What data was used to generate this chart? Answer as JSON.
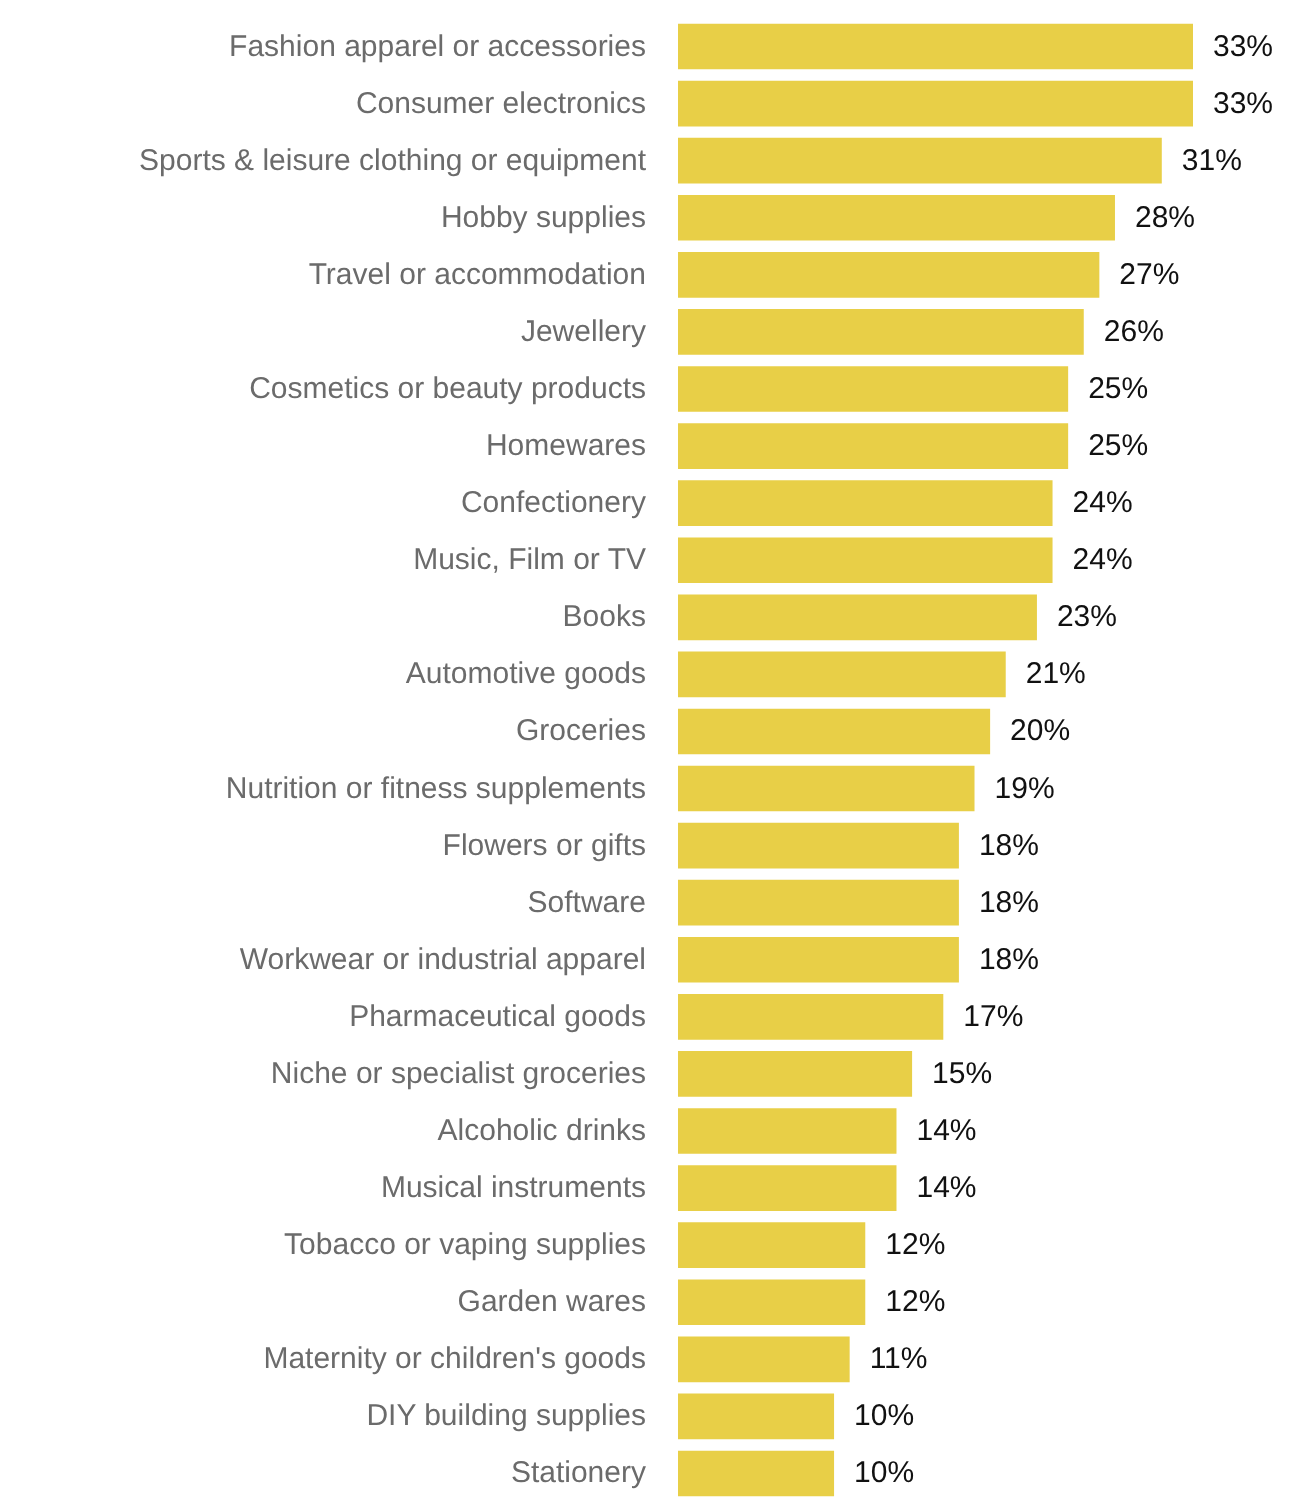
{
  "chart_data": {
    "type": "bar",
    "orientation": "horizontal",
    "color": "#e8cf47",
    "categories": [
      "Fashion apparel or accessories",
      "Consumer electronics",
      "Sports & leisure clothing or equipment",
      "Hobby supplies",
      "Travel or accommodation",
      "Jewellery",
      "Cosmetics or beauty products",
      "Homewares",
      "Confectionery",
      "Music, Film or TV",
      "Books",
      "Automotive goods",
      "Groceries",
      "Nutrition or fitness supplements",
      "Flowers or gifts",
      "Software",
      "Workwear or industrial apparel",
      "Pharmaceutical goods",
      "Niche or specialist groceries",
      "Alcoholic drinks",
      "Musical instruments",
      "Tobacco or vaping supplies",
      "Garden wares",
      "Maternity or children's goods",
      "DIY building supplies",
      "Stationery"
    ],
    "values": [
      33,
      33,
      31,
      28,
      27,
      26,
      25,
      25,
      24,
      24,
      23,
      21,
      20,
      19,
      18,
      18,
      18,
      17,
      15,
      14,
      14,
      12,
      12,
      11,
      10,
      10
    ],
    "value_labels": [
      "33%",
      "33%",
      "31%",
      "28%",
      "27%",
      "26%",
      "25%",
      "25%",
      "24%",
      "24%",
      "23%",
      "21%",
      "20%",
      "19%",
      "18%",
      "18%",
      "18%",
      "17%",
      "15%",
      "14%",
      "14%",
      "12%",
      "12%",
      "11%",
      "10%",
      "10%"
    ]
  }
}
